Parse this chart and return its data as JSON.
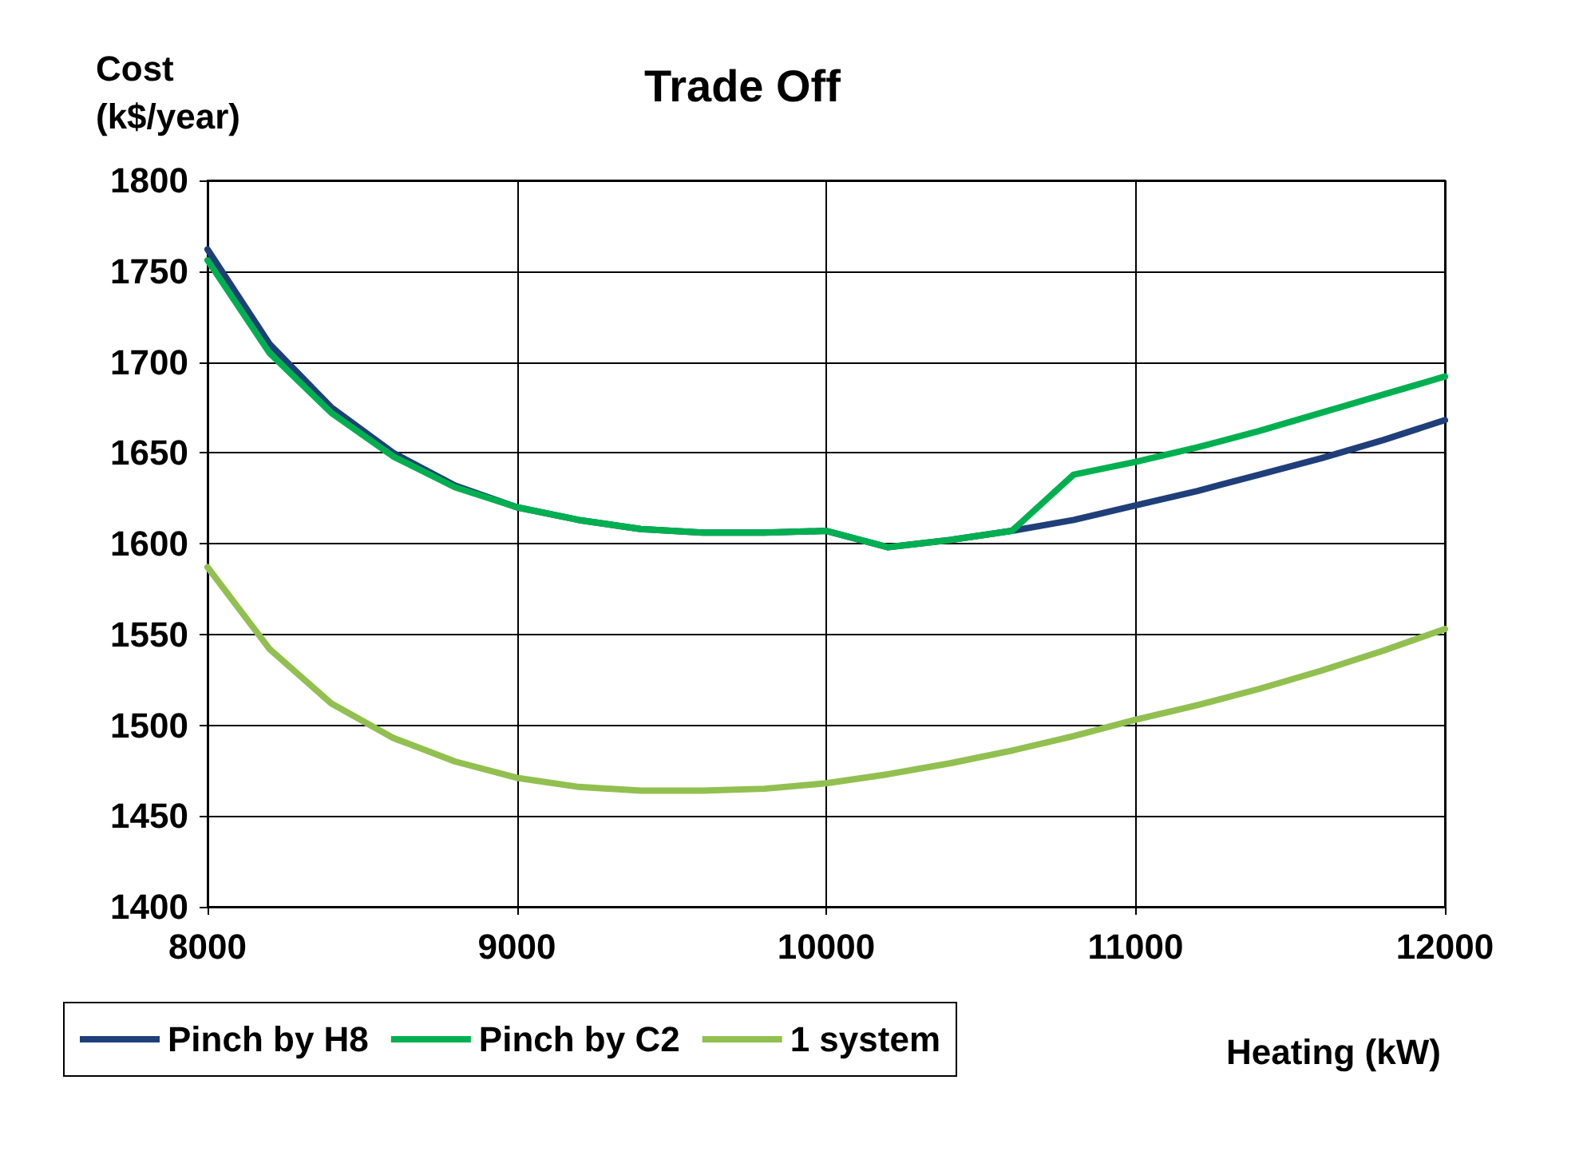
{
  "chart_data": {
    "type": "line",
    "title": "Trade Off",
    "xlabel": "Heating (kW)",
    "ylabel": "Cost\n(k$/year)",
    "x": [
      8000,
      8200,
      8400,
      8600,
      8800,
      9000,
      9200,
      9400,
      9600,
      9800,
      10000,
      10200,
      10400,
      10600,
      10800,
      11000,
      11200,
      11400,
      11600,
      11800,
      12000
    ],
    "series": [
      {
        "name": "Pinch by H8",
        "color": "#1f3f7a",
        "values": [
          1762,
          1710,
          1675,
          1650,
          1632,
          1620,
          1613,
          1608,
          1606,
          1606,
          1607,
          1598,
          1602,
          1607,
          1613,
          1621,
          1629,
          1638,
          1647,
          1657,
          1668
        ]
      },
      {
        "name": "Pinch by C2",
        "color": "#00b050",
        "values": [
          1756,
          1705,
          1672,
          1648,
          1631,
          1620,
          1613,
          1608,
          1606,
          1606,
          1607,
          1598,
          1602,
          1607,
          1638,
          1645,
          1653,
          1662,
          1672,
          1682,
          1692
        ]
      },
      {
        "name": "1 system",
        "color": "#92c050",
        "values": [
          1587,
          1542,
          1512,
          1493,
          1480,
          1471,
          1466,
          1464,
          1464,
          1465,
          1468,
          1473,
          1479,
          1486,
          1494,
          1503,
          1511,
          1520,
          1530,
          1541,
          1553
        ]
      }
    ],
    "xlim": [
      8000,
      12000
    ],
    "xticks": [
      8000,
      9000,
      10000,
      11000,
      12000
    ],
    "ylim": [
      1400,
      1800
    ],
    "yticks": [
      1400,
      1450,
      1500,
      1550,
      1600,
      1650,
      1700,
      1750,
      1800
    ],
    "grid": true,
    "legend": "bottom left",
    "marker": "none",
    "line_style": "solid"
  }
}
